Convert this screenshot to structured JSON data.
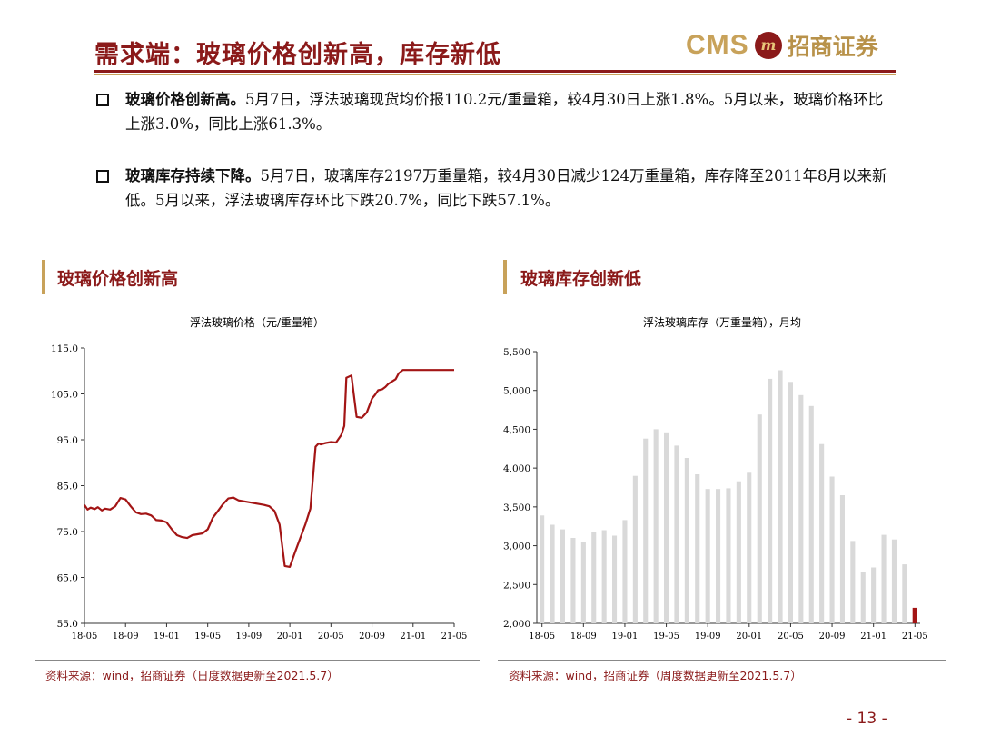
{
  "header": {
    "title": "需求端：玻璃价格创新高，库存新低"
  },
  "logo": {
    "cms": "CMS",
    "seal": "m",
    "name_cn": "招商证券"
  },
  "bullets": [
    {
      "lead": "玻璃价格创新高。",
      "body": "5月7日，浮法玻璃现货均价报110.2元/重量箱，较4月30日上涨1.8%。5月以来，玻璃价格环比上涨3.0%，同比上涨61.3%。"
    },
    {
      "lead": "玻璃库存持续下降。",
      "body": "5月7日，玻璃库存2197万重量箱，较4月30日减少124万重量箱，库存降至2011年8月以来新低。5月以来，浮法玻璃库存环比下跌20.7%，同比下跌57.1%。"
    }
  ],
  "sections": {
    "left_title": "玻璃价格创新高",
    "right_title": "玻璃库存创新低",
    "left_source": "资料来源：wind，招商证券（日度数据更新至2021.5.7）",
    "right_source": "资料来源：wind，招商证券（周度数据更新至2021.5.7）"
  },
  "page_number": "- 13 -",
  "colors": {
    "brand": "#8b1a1a",
    "gold": "#c8a25a",
    "line": "#a31515",
    "bar": "#d9d9d9",
    "bar_highlight": "#a31515"
  },
  "chart_data": [
    {
      "type": "line",
      "title": "浮法玻璃价格（元/重量箱）",
      "ylim": [
        55.0,
        115.0
      ],
      "yticks": [
        "55.0",
        "65.0",
        "75.0",
        "85.0",
        "95.0",
        "105.0",
        "115.0"
      ],
      "xticks": [
        "18-05",
        "18-09",
        "19-01",
        "19-05",
        "19-09",
        "20-01",
        "20-05",
        "20-09",
        "21-01",
        "21-05"
      ],
      "series": [
        {
          "x": [
            0,
            0.3,
            0.6,
            1,
            1.3,
            1.7,
            2,
            2.5,
            3,
            3.5,
            4,
            4.5,
            5,
            5.5,
            6,
            6.5,
            7,
            7.5,
            8,
            8.5,
            9,
            9.5,
            10,
            10.5,
            11,
            11.5,
            12,
            12.5,
            13,
            13.5,
            14,
            14.5,
            15,
            15.5,
            16,
            16.5,
            17,
            17.5,
            18,
            18.5,
            19,
            19.5,
            20,
            20.5,
            21,
            21.5,
            22,
            22.3,
            22.5,
            22.8,
            23,
            23.5,
            24,
            24.5,
            25,
            25.3,
            25.5,
            26,
            26.5,
            27,
            27.5,
            28,
            28.3,
            28.6,
            29,
            29.3,
            29.6,
            30,
            30.3,
            30.6,
            31,
            31.5,
            32,
            32.5,
            33,
            33.5,
            34,
            34.5,
            35,
            35.5,
            36
          ],
          "y": [
            80.8,
            79.8,
            80.2,
            79.9,
            80.3,
            79.6,
            80,
            79.8,
            80.5,
            82.3,
            82.0,
            80.5,
            79.2,
            78.8,
            78.9,
            78.5,
            77.5,
            77.4,
            77,
            75.5,
            74.2,
            73.8,
            73.6,
            74.2,
            74.4,
            74.6,
            75.5,
            78.0,
            79.5,
            81.0,
            82.2,
            82.4,
            81.8,
            81.6,
            81.4,
            81.2,
            81.0,
            80.8,
            80.5,
            79.5,
            76.5,
            67.5,
            67.3,
            70.5,
            73.5,
            76.5,
            80.0,
            88.0,
            93.5,
            94.2,
            94.0,
            94.3,
            94.5,
            94.4,
            96.0,
            98.0,
            108.5,
            109.0,
            100.0,
            99.8,
            101.0,
            104.0,
            104.8,
            105.8,
            106.0,
            106.5,
            107.2,
            107.8,
            108.2,
            109.5,
            110.2,
            110.2,
            110.2,
            110.2,
            110.2,
            110.2,
            110.2,
            110.2,
            110.2,
            110.2,
            110.2
          ]
        }
      ]
    },
    {
      "type": "bar",
      "title": "浮法玻璃库存（万重量箱），月均",
      "ylim": [
        2000,
        5500
      ],
      "yticks": [
        "2,000",
        "2,500",
        "3,000",
        "3,500",
        "4,000",
        "4,500",
        "5,000",
        "5,500"
      ],
      "xticks": [
        "18-05",
        "18-09",
        "19-01",
        "19-05",
        "19-09",
        "20-01",
        "20-05",
        "20-09",
        "21-01",
        "21-05"
      ],
      "values": [
        3390,
        3270,
        3210,
        3100,
        3050,
        3180,
        3200,
        3130,
        3330,
        3900,
        4380,
        4500,
        4460,
        4290,
        4130,
        3920,
        3730,
        3730,
        3740,
        3830,
        3940,
        4690,
        5150,
        5260,
        5110,
        4940,
        4800,
        4310,
        3890,
        3650,
        3060,
        2660,
        2720,
        3140,
        3080,
        2760,
        2200
      ],
      "highlight_last": true
    }
  ]
}
